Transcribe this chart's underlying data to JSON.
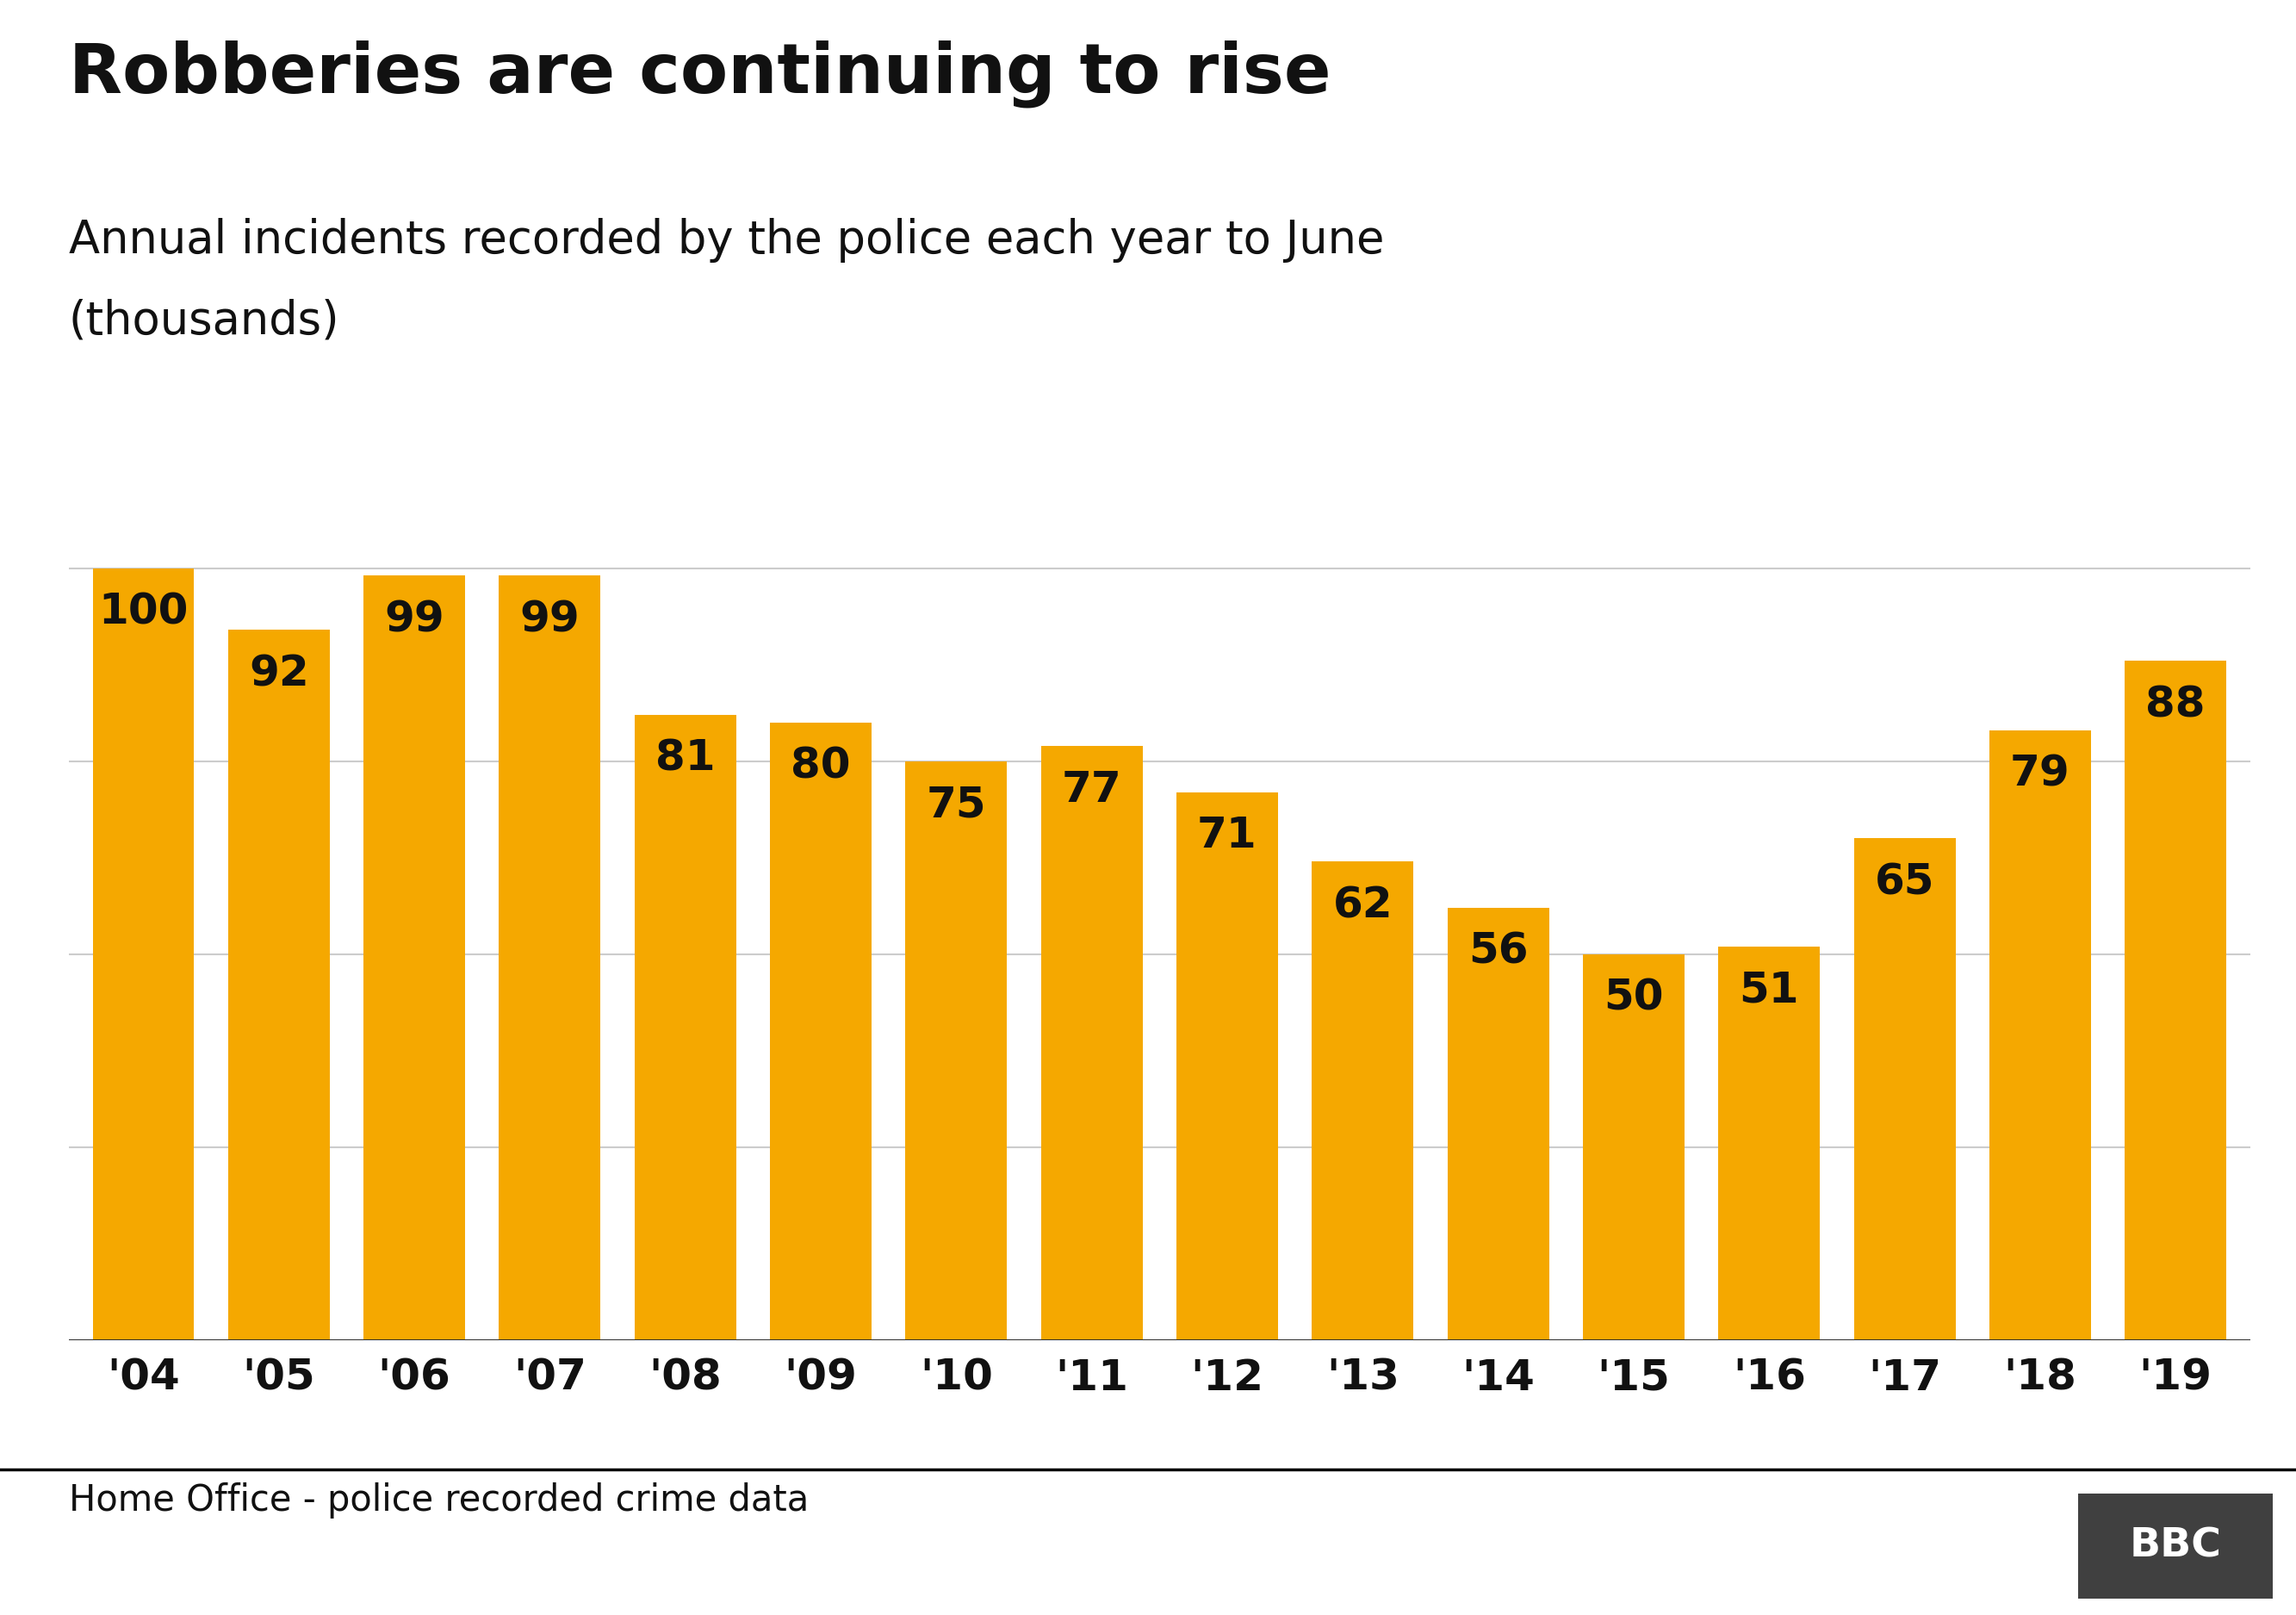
{
  "title": "Robberies are continuing to rise",
  "subtitle_line1": "Annual incidents recorded by the police each year to June",
  "subtitle_line2": "(thousands)",
  "source": "Home Office - police recorded crime data",
  "categories": [
    "'04",
    "'05",
    "'06",
    "'07",
    "'08",
    "'09",
    "'10",
    "'11",
    "'12",
    "'13",
    "'14",
    "'15",
    "'16",
    "'17",
    "'18",
    "'19"
  ],
  "values": [
    100,
    92,
    99,
    99,
    81,
    80,
    75,
    77,
    71,
    62,
    56,
    50,
    51,
    65,
    79,
    88
  ],
  "bar_color": "#F5A800",
  "background_color": "#ffffff",
  "title_fontsize": 58,
  "subtitle_fontsize": 38,
  "label_fontsize": 36,
  "tick_fontsize": 36,
  "source_fontsize": 30,
  "ylim": [
    0,
    115
  ],
  "yticks": [
    0,
    25,
    50,
    75,
    100
  ],
  "grid_color": "#cccccc",
  "text_color": "#111111",
  "footer_line_color": "#000000",
  "bbc_box_color": "#404040"
}
